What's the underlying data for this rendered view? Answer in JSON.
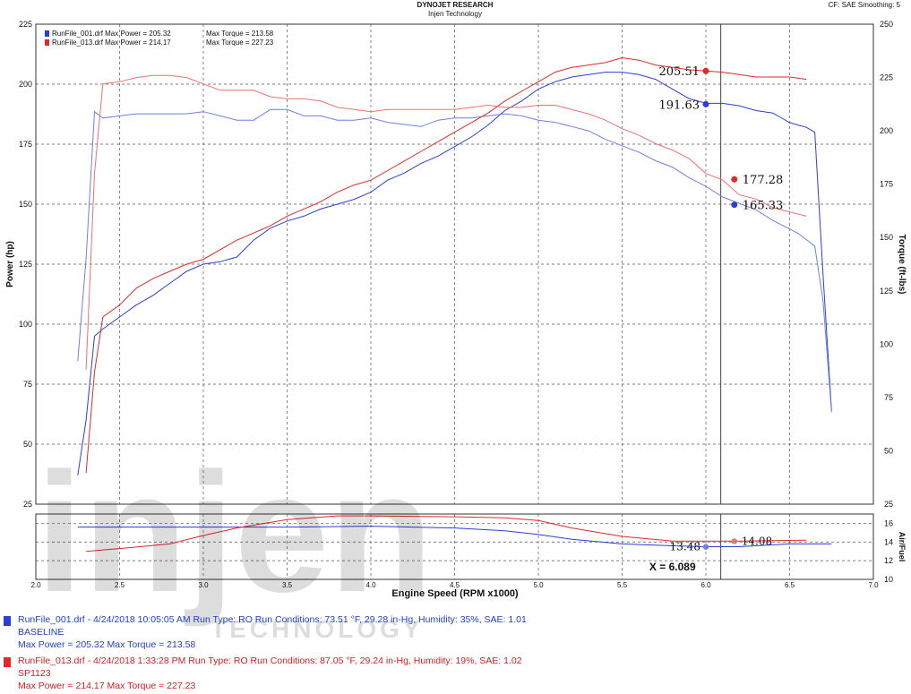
{
  "header": {
    "title": "DYNOJET RESEARCH",
    "subtitle": "Injen Technology",
    "corner": "CF: SAE  Smoothing: 5"
  },
  "watermark": {
    "logo_text": "injen",
    "sub_text": "TECHNOLOGY"
  },
  "colors": {
    "run1": "#2b3fd4",
    "run2": "#e02a2a",
    "run1_light": "#6f7fe6",
    "run2_light": "#ee7070",
    "grid": "#555555"
  },
  "chart_data": [
    {
      "type": "line",
      "title": "",
      "xlabel": "Engine Speed (RPM x1000)",
      "ylabel": "Power (hp)",
      "y2label": "Torque (ft-lbs)",
      "xlim": [
        2.0,
        7.0
      ],
      "ylim": [
        25,
        225
      ],
      "y2lim": [
        25,
        250
      ],
      "x_ticks": [
        "2.0",
        "2.5",
        "3.0",
        "3.5",
        "4.0",
        "4.5",
        "5.0",
        "5.5",
        "6.0",
        "6.5",
        "7.0"
      ],
      "y_ticks": [
        "25",
        "50",
        "75",
        "100",
        "125",
        "150",
        "175",
        "200",
        "225"
      ],
      "y2_ticks": [
        "25",
        "50",
        "75",
        "100",
        "125",
        "150",
        "175",
        "200",
        "225",
        "250"
      ],
      "grid": true,
      "legend_inside": [
        {
          "file": "RunFile_001.drf",
          "max_power_label": "Max Power = 205.32",
          "max_torque_label": "Max Torque = 213.58"
        },
        {
          "file": "RunFile_013.drf",
          "max_power_label": "Max Power = 214.17",
          "max_torque_label": "Max Torque = 227.23"
        }
      ],
      "cursor_x": 6.089,
      "series": [
        {
          "name": "RunFile_001.drf",
          "quantity": "power",
          "x": [
            2.25,
            2.3,
            2.35,
            2.4,
            2.5,
            2.6,
            2.7,
            2.8,
            2.9,
            3.0,
            3.1,
            3.2,
            3.3,
            3.4,
            3.5,
            3.6,
            3.7,
            3.8,
            3.9,
            4.0,
            4.1,
            4.2,
            4.3,
            4.4,
            4.5,
            4.6,
            4.7,
            4.8,
            4.9,
            5.0,
            5.1,
            5.2,
            5.3,
            5.4,
            5.5,
            5.6,
            5.7,
            5.8,
            5.9,
            6.0,
            6.1,
            6.2,
            6.3,
            6.4,
            6.45,
            6.5,
            6.55,
            6.6,
            6.65,
            6.7,
            6.75
          ],
          "y": [
            37,
            60,
            95,
            98,
            103,
            108,
            112,
            117,
            122,
            125,
            126,
            128,
            135,
            140,
            143,
            145,
            148,
            150,
            152,
            155,
            160,
            163,
            167,
            170,
            174,
            178,
            183,
            189,
            193,
            198,
            201,
            203,
            204,
            205,
            205,
            204,
            202,
            198,
            194,
            192,
            192,
            191,
            189,
            188,
            186,
            184,
            183,
            182,
            180,
            120,
            64
          ]
        },
        {
          "name": "RunFile_001.drf",
          "quantity": "torque",
          "x": [
            2.25,
            2.3,
            2.35,
            2.4,
            2.5,
            2.6,
            2.7,
            2.8,
            2.9,
            3.0,
            3.1,
            3.2,
            3.3,
            3.4,
            3.5,
            3.6,
            3.7,
            3.8,
            3.9,
            4.0,
            4.1,
            4.2,
            4.3,
            4.4,
            4.5,
            4.6,
            4.7,
            4.8,
            4.9,
            5.0,
            5.1,
            5.2,
            5.3,
            5.4,
            5.5,
            5.6,
            5.7,
            5.8,
            5.9,
            6.0,
            6.1,
            6.2,
            6.3,
            6.4,
            6.45,
            6.5,
            6.55,
            6.6,
            6.65,
            6.7,
            6.75
          ],
          "y": [
            92,
            140,
            209,
            206,
            207,
            208,
            208,
            208,
            208,
            209,
            207,
            205,
            205,
            210,
            210,
            207,
            207,
            205,
            205,
            206,
            204,
            203,
            202,
            205,
            206,
            206,
            207,
            208,
            207,
            205,
            204,
            202,
            200,
            196,
            193,
            190,
            186,
            183,
            178,
            174,
            169,
            166,
            163,
            158,
            156,
            154,
            152,
            149,
            146,
            120,
            68
          ]
        },
        {
          "name": "RunFile_013.drf",
          "quantity": "power",
          "x": [
            2.3,
            2.35,
            2.4,
            2.5,
            2.6,
            2.7,
            2.8,
            2.9,
            3.0,
            3.1,
            3.2,
            3.3,
            3.4,
            3.5,
            3.6,
            3.7,
            3.8,
            3.9,
            4.0,
            4.1,
            4.2,
            4.3,
            4.4,
            4.5,
            4.6,
            4.7,
            4.8,
            4.9,
            5.0,
            5.1,
            5.2,
            5.3,
            5.4,
            5.5,
            5.6,
            5.7,
            5.8,
            5.9,
            6.0,
            6.1,
            6.2,
            6.3,
            6.4,
            6.5,
            6.6
          ],
          "y": [
            38,
            80,
            103,
            108,
            115,
            119,
            122,
            125,
            127,
            131,
            135,
            138,
            141,
            145,
            148,
            151,
            155,
            158,
            160,
            164,
            168,
            172,
            176,
            180,
            184,
            188,
            193,
            197,
            201,
            205,
            207,
            208,
            209,
            211,
            210,
            208,
            207,
            206,
            205.5,
            205,
            204,
            203,
            203,
            203,
            202
          ]
        },
        {
          "name": "RunFile_013.drf",
          "quantity": "torque",
          "x": [
            2.3,
            2.35,
            2.4,
            2.5,
            2.6,
            2.7,
            2.8,
            2.9,
            3.0,
            3.1,
            3.2,
            3.3,
            3.4,
            3.5,
            3.6,
            3.7,
            3.8,
            3.9,
            4.0,
            4.1,
            4.2,
            4.3,
            4.4,
            4.5,
            4.6,
            4.7,
            4.8,
            4.9,
            5.0,
            5.1,
            5.2,
            5.3,
            5.4,
            5.5,
            5.6,
            5.7,
            5.8,
            5.9,
            6.0,
            6.1,
            6.2,
            6.3,
            6.4,
            6.5,
            6.6
          ],
          "y": [
            88,
            180,
            222,
            223,
            225,
            226,
            226,
            225,
            222,
            219,
            219,
            219,
            216,
            215,
            215,
            214,
            211,
            210,
            209,
            210,
            210,
            210,
            210,
            210,
            211,
            212,
            211,
            211,
            212,
            212,
            210,
            208,
            205,
            201,
            198,
            194,
            191,
            187,
            180,
            177,
            170,
            168,
            164,
            162,
            160
          ]
        }
      ],
      "markers": [
        {
          "series": "RunFile_013.drf",
          "quantity": "power",
          "x": 6.0,
          "y": 205.51,
          "label": "205.51"
        },
        {
          "series": "RunFile_001.drf",
          "quantity": "power",
          "x": 6.0,
          "y": 191.63,
          "label": "191.63"
        },
        {
          "series": "RunFile_013.drf",
          "quantity": "torque",
          "x": 6.17,
          "y": 177.28,
          "label": "177.28"
        },
        {
          "series": "RunFile_001.drf",
          "quantity": "torque",
          "x": 6.17,
          "y": 165.33,
          "label": "165.33"
        }
      ]
    },
    {
      "type": "line",
      "title": "",
      "xlabel": "Engine Speed (RPM x1000)",
      "ylabel": "Air/Fuel",
      "xlim": [
        2.0,
        7.0
      ],
      "ylim": [
        10,
        17
      ],
      "y_ticks": [
        "10",
        "12",
        "14",
        "16"
      ],
      "grid": true,
      "cursor_label": "X = 6.089",
      "series": [
        {
          "name": "RunFile_001.drf",
          "x": [
            2.25,
            2.5,
            3.0,
            3.5,
            4.0,
            4.5,
            4.8,
            5.0,
            5.2,
            5.5,
            5.8,
            6.0,
            6.2,
            6.5,
            6.75
          ],
          "y": [
            15.6,
            15.6,
            15.6,
            15.6,
            15.7,
            15.5,
            15.2,
            14.8,
            14.3,
            13.8,
            13.6,
            13.5,
            13.5,
            13.8,
            13.8
          ]
        },
        {
          "name": "RunFile_013.drf",
          "x": [
            2.3,
            2.5,
            2.8,
            3.0,
            3.2,
            3.5,
            3.8,
            4.0,
            4.5,
            4.8,
            5.0,
            5.2,
            5.5,
            5.8,
            6.0,
            6.2,
            6.6
          ],
          "y": [
            13.0,
            13.3,
            13.8,
            14.7,
            15.5,
            16.4,
            16.8,
            16.8,
            16.7,
            16.6,
            16.3,
            15.5,
            14.6,
            14.1,
            14.1,
            14.1,
            14.2
          ]
        }
      ],
      "markers": [
        {
          "series": "RunFile_001.drf",
          "x": 6.0,
          "y": 13.48,
          "label": "13.48"
        },
        {
          "series": "RunFile_013.drf",
          "x": 6.17,
          "y": 14.08,
          "label": "14.08"
        }
      ]
    }
  ],
  "run_info": [
    {
      "line1": "RunFile_001.drf - 4/24/2018 10:05:05 AM  Run Type: RO  Run Conditions: 73.51 °F, 29.28 in-Hg,  Humidity:  35%, SAE: 1.01",
      "line2": "BASELINE",
      "line3": "Max Power = 205.32  Max Torque = 213.58"
    },
    {
      "line1": "RunFile_013.drf - 4/24/2018 1:33:28 PM  Run Type: RO  Run Conditions: 87.05 °F, 29.24 in-Hg,  Humidity:  19%, SAE: 1.02",
      "line2": "SP1123",
      "line3": "Max Power = 214.17  Max Torque = 227.23"
    }
  ]
}
